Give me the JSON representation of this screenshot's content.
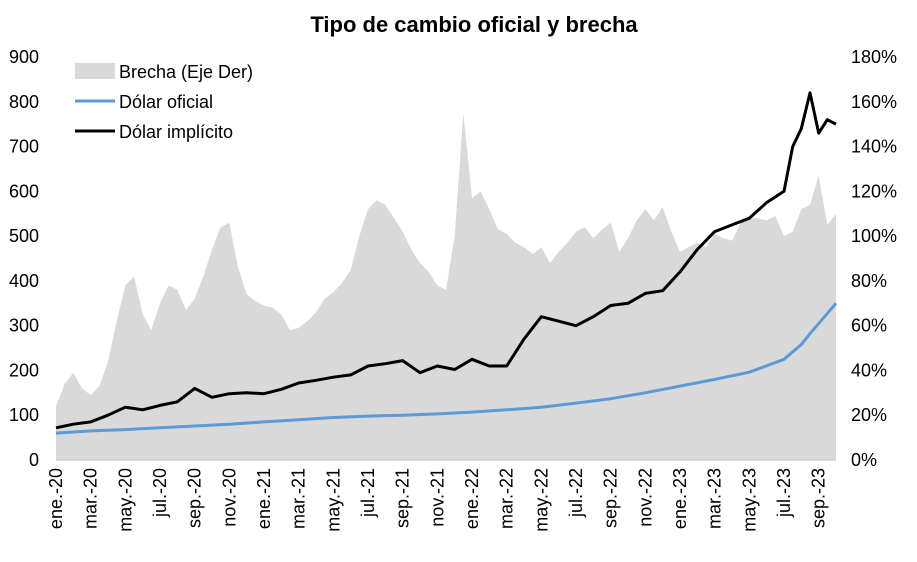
{
  "chart_data": {
    "type": "area",
    "title": "Tipo de cambio oficial y brecha",
    "x_tick_labels": [
      "ene.-20",
      "mar.-20",
      "may.-20",
      "jul.-20",
      "sep.-20",
      "nov.-20",
      "ene.-21",
      "mar.-21",
      "may.-21",
      "jul.-21",
      "sep.-21",
      "nov.-21",
      "ene.-22",
      "mar.-22",
      "may.-22",
      "jul.-22",
      "sep.-22",
      "nov.-22",
      "ene.-23",
      "mar.-23",
      "may.-23",
      "jul.-23",
      "sep.-23"
    ],
    "y_left": {
      "ticks": [
        "0",
        "100",
        "200",
        "300",
        "400",
        "500",
        "600",
        "700",
        "800",
        "900"
      ],
      "range": [
        0,
        900
      ]
    },
    "y_right": {
      "ticks": [
        "0%",
        "20%",
        "40%",
        "60%",
        "80%",
        "100%",
        "120%",
        "140%",
        "160%",
        "180%"
      ],
      "range": [
        0,
        180
      ],
      "unit": "%"
    },
    "grid": false,
    "legend": {
      "placement": "top-left"
    },
    "series": [
      {
        "name": "Brecha (Eje Der)",
        "axis": "right",
        "kind": "area",
        "color": "#d9d9d9",
        "x": [
          0,
          0.5,
          1,
          1.5,
          2,
          2.5,
          3,
          3.5,
          4,
          4.5,
          5,
          5.5,
          6,
          6.5,
          7,
          7.5,
          8,
          8.5,
          9,
          9.5,
          10,
          10.5,
          11,
          11.5,
          12,
          12.5,
          13,
          13.5,
          14,
          14.5,
          15,
          15.5,
          16,
          16.5,
          17,
          17.5,
          18,
          18.5,
          19,
          19.5,
          20,
          20.5,
          21,
          21.5,
          22,
          22.5,
          23,
          23.5,
          24,
          24.5,
          25,
          25.5,
          26,
          26.5,
          27,
          27.5,
          28,
          28.5,
          29,
          29.5,
          30,
          30.5,
          31,
          31.5,
          32,
          32.5,
          33,
          33.5,
          34,
          34.5,
          35,
          35.5,
          36,
          36.5,
          37,
          37.5,
          38,
          38.5,
          39,
          39.5,
          40,
          40.5,
          41,
          41.5,
          42,
          42.5,
          43,
          43.5,
          44,
          44.5,
          45
        ],
        "values": [
          24,
          34,
          39,
          32,
          29,
          33,
          44,
          62,
          78,
          82,
          65,
          58,
          70,
          78,
          76,
          67,
          72,
          82,
          94,
          104,
          106,
          86,
          74,
          71,
          69,
          68,
          65,
          58,
          59,
          62,
          66,
          72,
          75,
          79,
          85,
          100,
          112,
          116,
          114,
          108,
          102,
          94,
          88,
          84,
          78,
          76,
          100,
          155,
          117,
          120,
          112,
          103,
          101,
          97,
          95,
          92,
          95,
          88,
          93,
          97,
          102,
          104,
          99,
          103,
          106,
          93,
          99,
          107,
          112,
          107,
          113,
          102,
          93,
          95,
          97,
          95,
          101,
          99,
          98,
          106,
          108,
          108,
          107,
          109,
          100,
          102,
          112,
          114,
          127,
          105,
          110
        ]
      },
      {
        "name": "Dólar oficial",
        "axis": "left",
        "kind": "line",
        "color": "#5b9bd5",
        "x": [
          0,
          2,
          4,
          6,
          8,
          10,
          12,
          14,
          16,
          18,
          20,
          22,
          24,
          26,
          28,
          30,
          32,
          34,
          36,
          38,
          40,
          42,
          43,
          43.5,
          45
        ],
        "values": [
          60,
          65,
          68,
          72,
          76,
          80,
          85,
          90,
          95,
          98,
          100,
          103,
          107,
          112,
          118,
          127,
          137,
          150,
          165,
          180,
          196,
          225,
          258,
          282,
          350
        ]
      },
      {
        "name": "Dólar implícito",
        "axis": "left",
        "kind": "line",
        "color": "#000000",
        "x": [
          0,
          1,
          2,
          3,
          4,
          5,
          6,
          7,
          8,
          9,
          10,
          11,
          12,
          13,
          14,
          15,
          16,
          17,
          18,
          19,
          20,
          21,
          22,
          23,
          24,
          25,
          26,
          27,
          28,
          29,
          30,
          31,
          32,
          33,
          34,
          35,
          36,
          37,
          38,
          39,
          40,
          41,
          42,
          42.5,
          43,
          43.5,
          44,
          44.5,
          45
        ],
        "values": [
          72,
          80,
          85,
          100,
          118,
          112,
          122,
          130,
          160,
          140,
          148,
          150,
          148,
          158,
          172,
          178,
          185,
          190,
          210,
          215,
          222,
          195,
          210,
          202,
          225,
          210,
          210,
          270,
          320,
          310,
          300,
          320,
          345,
          350,
          372,
          378,
          420,
          470,
          510,
          525,
          540,
          575,
          600,
          700,
          740,
          820,
          730,
          760,
          750
        ]
      }
    ]
  }
}
